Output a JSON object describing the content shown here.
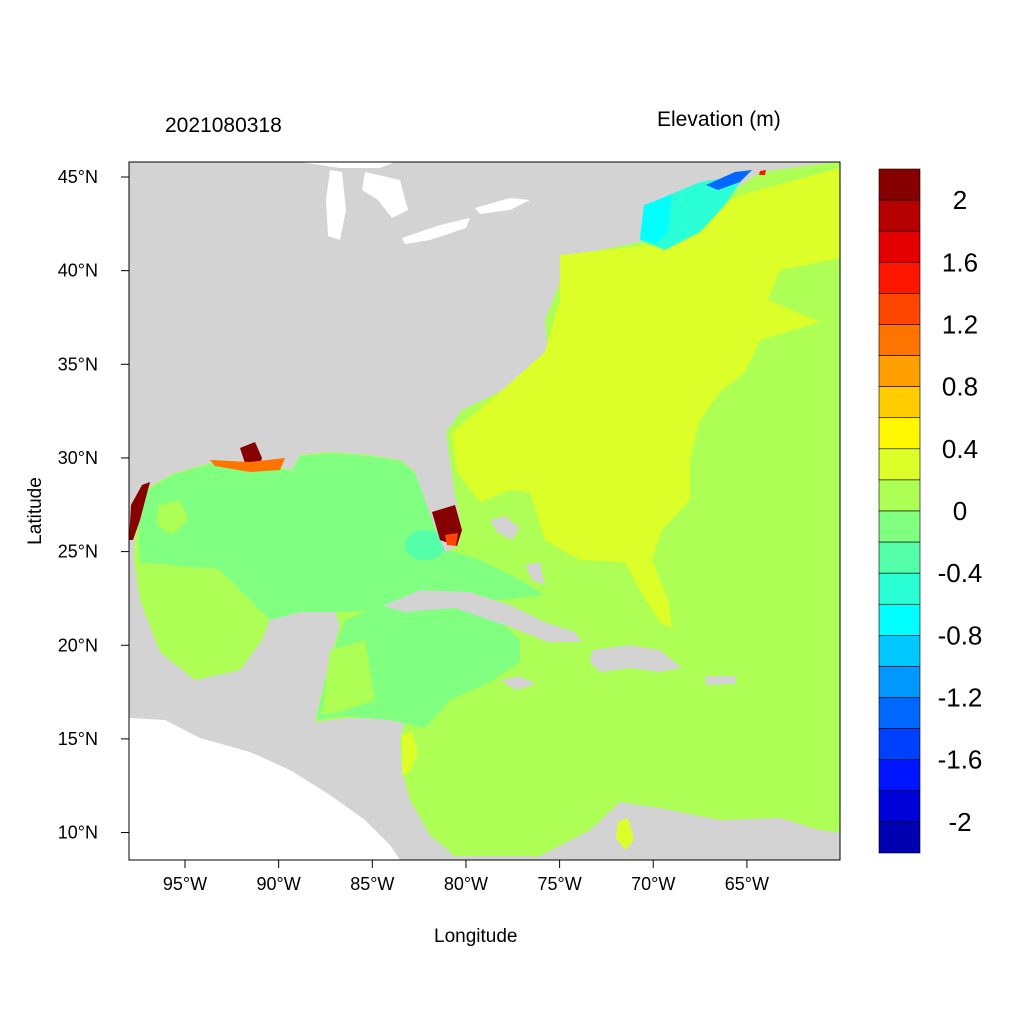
{
  "title_left": "2021080318",
  "title_right": "Elevation (m)",
  "xlabel": "Longitude",
  "ylabel": "Latitude",
  "x_ticks": [
    {
      "lon_w": 95,
      "label": "95°W"
    },
    {
      "lon_w": 90,
      "label": "90°W"
    },
    {
      "lon_w": 85,
      "label": "85°W"
    },
    {
      "lon_w": 80,
      "label": "80°W"
    },
    {
      "lon_w": 75,
      "label": "75°W"
    },
    {
      "lon_w": 70,
      "label": "70°W"
    },
    {
      "lon_w": 65,
      "label": "65°W"
    }
  ],
  "y_ticks": [
    {
      "lat_n": 45,
      "label": "45°N"
    },
    {
      "lat_n": 40,
      "label": "40°N"
    },
    {
      "lat_n": 35,
      "label": "35°N"
    },
    {
      "lat_n": 30,
      "label": "30°N"
    },
    {
      "lat_n": 25,
      "label": "25°N"
    },
    {
      "lat_n": 20,
      "label": "20°N"
    },
    {
      "lat_n": 15,
      "label": "15°N"
    },
    {
      "lat_n": 10,
      "label": "10°N"
    }
  ],
  "map_extent": {
    "lon_min": -98,
    "lon_max": -60,
    "lat_min": 8.6,
    "lat_max": 45.8
  },
  "colorbar": {
    "colors_top_to_bottom": [
      "#860000",
      "#b50000",
      "#e40000",
      "#ff1600",
      "#ff4600",
      "#ff7400",
      "#ffa000",
      "#ffcc00",
      "#fff700",
      "#dcff2a",
      "#aeff55",
      "#80ff80",
      "#55ffaa",
      "#2affd5",
      "#00ffff",
      "#00c8ff",
      "#0098ff",
      "#0068ff",
      "#0040ff",
      "#0014ff",
      "#0000d8",
      "#0000b0"
    ],
    "labels": [
      {
        "value": 2,
        "label": "2"
      },
      {
        "value": 1.6,
        "label": "1.6"
      },
      {
        "value": 1.2,
        "label": "1.2"
      },
      {
        "value": 0.8,
        "label": "0.8"
      },
      {
        "value": 0.4,
        "label": "0.4"
      },
      {
        "value": 0,
        "label": "0"
      },
      {
        "value": -0.4,
        "label": "-0.4"
      },
      {
        "value": -0.8,
        "label": "-0.8"
      },
      {
        "value": -1.2,
        "label": "-1.2"
      },
      {
        "value": -1.6,
        "label": "-1.6"
      },
      {
        "value": -2,
        "label": "-2"
      }
    ],
    "min": -2.2,
    "max": 2.2
  },
  "colors": {
    "land": "#d3d3d3",
    "nodata": "#ffffff"
  }
}
